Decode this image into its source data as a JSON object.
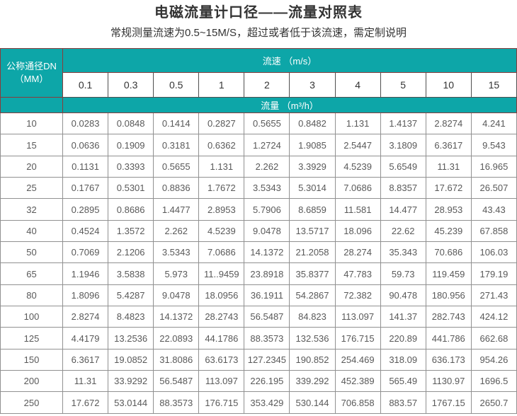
{
  "page": {
    "title": "电磁流量计口径——流量对照表",
    "subtitle": "常规测量流速为0.5~15M/S，超过或者低于该流速，需定制说明"
  },
  "colors": {
    "header_background": "#0da6a8",
    "header_border": "#8b3b3b",
    "grid_border": "#919191",
    "header_text": "#ffffff",
    "data_text": "#595959"
  },
  "table": {
    "dn_header": {
      "line1": "公称通径DN",
      "line2": "（MM）"
    },
    "velocity_header": "流速 （m/s）",
    "flow_header": "流量 （m³/h）",
    "velocities": [
      "0.1",
      "0.3",
      "0.5",
      "1",
      "2",
      "3",
      "4",
      "5",
      "10",
      "15"
    ],
    "rows": [
      {
        "dn": "10",
        "values": [
          "0.0283",
          "0.0848",
          "0.1414",
          "0.2827",
          "0.5655",
          "0.8482",
          "1.131",
          "1.4137",
          "2.8274",
          "4.241"
        ]
      },
      {
        "dn": "15",
        "values": [
          "0.0636",
          "0.1909",
          "0.3181",
          "0.6362",
          "1.2724",
          "1.9085",
          "2.5447",
          "3.1809",
          "6.3617",
          "9.543"
        ]
      },
      {
        "dn": "20",
        "values": [
          "0.1131",
          "0.3393",
          "0.5655",
          "1.131",
          "2.262",
          "3.3929",
          "4.5239",
          "5.6549",
          "11.31",
          "16.965"
        ]
      },
      {
        "dn": "25",
        "values": [
          "0.1767",
          "0.5301",
          "0.8836",
          "1.7672",
          "3.5343",
          "5.3014",
          "7.0686",
          "8.8357",
          "17.672",
          "26.507"
        ]
      },
      {
        "dn": "32",
        "values": [
          "0.2895",
          "0.8686",
          "1.4477",
          "2.8953",
          "5.7906",
          "8.6859",
          "11.581",
          "14.477",
          "28.953",
          "43.43"
        ]
      },
      {
        "dn": "40",
        "values": [
          "0.4524",
          "1.3572",
          "2.262",
          "4.5239",
          "9.0478",
          "13.5717",
          "18.096",
          "22.62",
          "45.239",
          "67.858"
        ]
      },
      {
        "dn": "50",
        "values": [
          "0.7069",
          "2.1206",
          "3.5343",
          "7.0686",
          "14.1372",
          "21.2058",
          "28.274",
          "35.343",
          "70.686",
          "106.03"
        ]
      },
      {
        "dn": "65",
        "values": [
          "1.1946",
          "3.5838",
          "5.973",
          "11..9459",
          "23.8918",
          "35.8377",
          "47.783",
          "59.73",
          "119.459",
          "179.19"
        ]
      },
      {
        "dn": "80",
        "values": [
          "1.8096",
          "5.4287",
          "9.0478",
          "18.0956",
          "36.1911",
          "54.2867",
          "72.382",
          "90.478",
          "180.956",
          "271.43"
        ]
      },
      {
        "dn": "100",
        "values": [
          "2.8274",
          "8.4823",
          "14.1372",
          "28.2743",
          "56.5487",
          "84.823",
          "113.097",
          "141.37",
          "282.743",
          "424.12"
        ]
      },
      {
        "dn": "125",
        "values": [
          "4.4179",
          "13.2536",
          "22.0893",
          "44.1786",
          "88.3573",
          "132.536",
          "176.715",
          "220.89",
          "441.786",
          "662.68"
        ]
      },
      {
        "dn": "150",
        "values": [
          "6.3617",
          "19.0852",
          "31.8086",
          "63.6173",
          "127.2345",
          "190.852",
          "254.469",
          "318.09",
          "636.173",
          "954.26"
        ]
      },
      {
        "dn": "200",
        "values": [
          "11.31",
          "33.9292",
          "56.5487",
          "113.097",
          "226.195",
          "339.292",
          "452.389",
          "565.49",
          "1130.97",
          "1696.5"
        ]
      },
      {
        "dn": "250",
        "values": [
          "17.672",
          "53.0144",
          "88.3573",
          "176.715",
          "353.429",
          "530.144",
          "706.858",
          "883.57",
          "1767.15",
          "2650.7"
        ]
      }
    ]
  }
}
